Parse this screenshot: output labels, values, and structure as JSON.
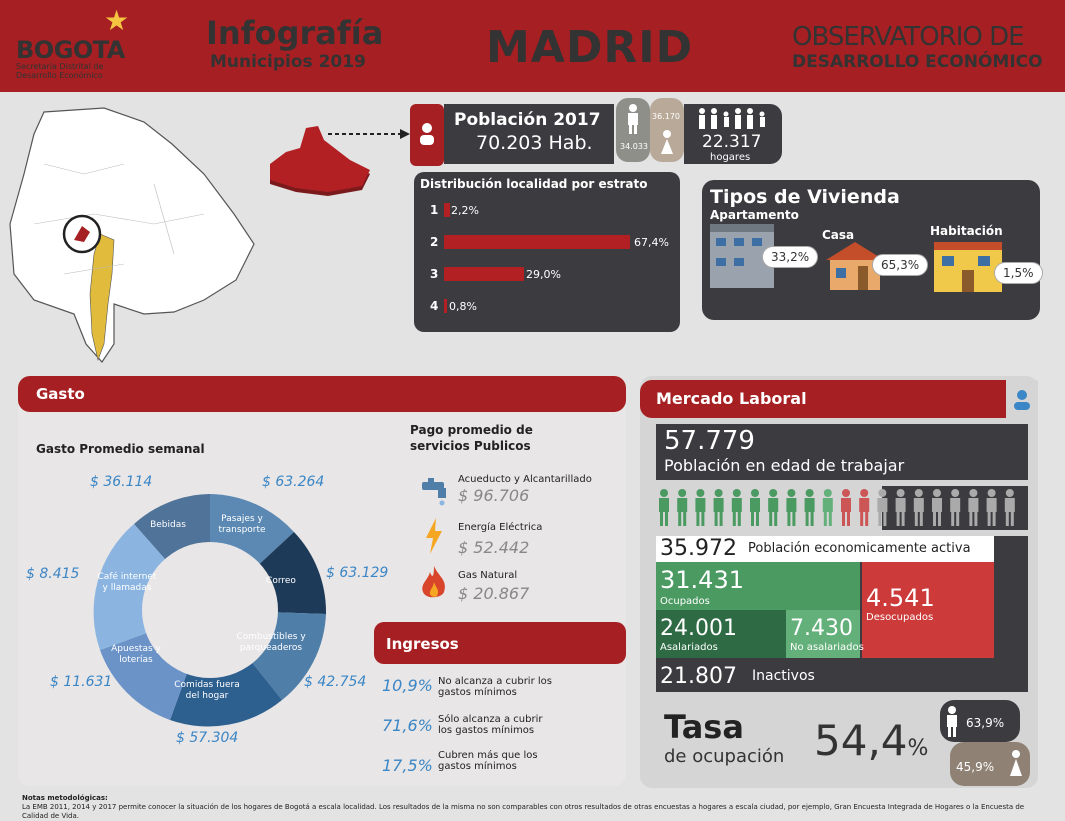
{
  "header": {
    "logo": "BOGOTA",
    "logo_sub": "Secretaría Distrital de Desarrollo Económico",
    "title": "Infografía",
    "subtitle": "Municipios 2019",
    "city": "MADRID",
    "observatorio_line1": "OBSERVATORIO DE",
    "observatorio_line2": "DESARROLLO ECONÓMICO"
  },
  "poblacion": {
    "title": "Población 2017",
    "value": "70.203 Hab.",
    "hombres": "34.033",
    "mujeres": "36.170",
    "hogares_value": "22.317",
    "hogares_label": "hogares"
  },
  "estrato": {
    "title": "Distribución localidad por estrato",
    "items": [
      {
        "num": "1",
        "pct": "2,2%",
        "value": 2.2
      },
      {
        "num": "2",
        "pct": "67,4%",
        "value": 67.4
      },
      {
        "num": "3",
        "pct": "29,0%",
        "value": 29.0
      },
      {
        "num": "4",
        "pct": "0,8%",
        "value": 0.8
      }
    ]
  },
  "vivienda": {
    "title": "Tipos de Vivienda",
    "apartamento": "Apartamento",
    "apartamento_pct": "33,2%",
    "casa": "Casa",
    "casa_pct": "65,3%",
    "habitacion": "Habitación",
    "habitacion_pct": "1,5%"
  },
  "gasto": {
    "title": "Gasto",
    "semanal_title": "Gasto Promedio semanal",
    "segments": [
      {
        "label": "Bebidas",
        "amount": "$ 36.114"
      },
      {
        "label": "Pasajes y transporte",
        "amount": "$ 63.264"
      },
      {
        "label": "Correo",
        "amount": "$ 63.129"
      },
      {
        "label": "Combustibles y parqueaderos",
        "amount": "$ 42.754"
      },
      {
        "label": "Comidas fuera del hogar",
        "amount": "$ 57.304"
      },
      {
        "label": "Apuestas y loterías",
        "amount": "$ 11.631"
      },
      {
        "label": "Café internet y llamadas",
        "amount": "$ 8.415"
      }
    ],
    "pago_title": "Pago promedio de servicios Publicos",
    "servicios": [
      {
        "name": "Acueducto y Alcantarillado",
        "value": "$ 96.706"
      },
      {
        "name": "Energía Eléctrica",
        "value": "$ 52.442"
      },
      {
        "name": "Gas Natural",
        "value": "$ 20.867"
      }
    ]
  },
  "ingresos": {
    "title": "Ingresos",
    "items": [
      {
        "pct": "10,9%",
        "text": "No alcanza a cubrir los gastos mínimos"
      },
      {
        "pct": "71,6%",
        "text": "Sólo alcanza a cubrir los gastos mínimos"
      },
      {
        "pct": "17,5%",
        "text": "Cubren más que los gastos mínimos"
      }
    ]
  },
  "mercado": {
    "title": "Mercado Laboral",
    "edad_value": "57.779",
    "edad_label": "Población en edad de trabajar",
    "pea_value": "35.972",
    "pea_label": "Población economicamente activa",
    "ocupados_value": "31.431",
    "ocupados_label": "Ocupados",
    "desocupados_value": "4.541",
    "desocupados_label": "Desocupados",
    "asalariados_value": "24.001",
    "asalariados_label": "Asalariados",
    "noasalariados_value": "7.430",
    "noasalariados_label": "No asalariados",
    "inactivos_value": "21.807",
    "inactivos_label": "Inactivos",
    "tasa_title": "Tasa",
    "tasa_sub": "de ocupación",
    "tasa_value": "54,4",
    "tasa_unit": "%",
    "hombres_pct": "63,9%",
    "mujeres_pct": "45,9%"
  },
  "notes": {
    "title": "Notas metodológicas:",
    "text": "La EMB 2011, 2014 y 2017 permite conocer la situación de los hogares de Bogotá a escala localidad. Los resultados de la misma no son comparables con otros resultados de otras encuestas a hogares a escala ciudad, por ejemplo, Gran Encuesta Integrada de Hogares o la Encuesta de Calidad de Vida."
  },
  "colors": {
    "red": "#a61f22",
    "dark": "#3b3b40",
    "blue": "#3b86c6",
    "green": "#4a9a62"
  }
}
